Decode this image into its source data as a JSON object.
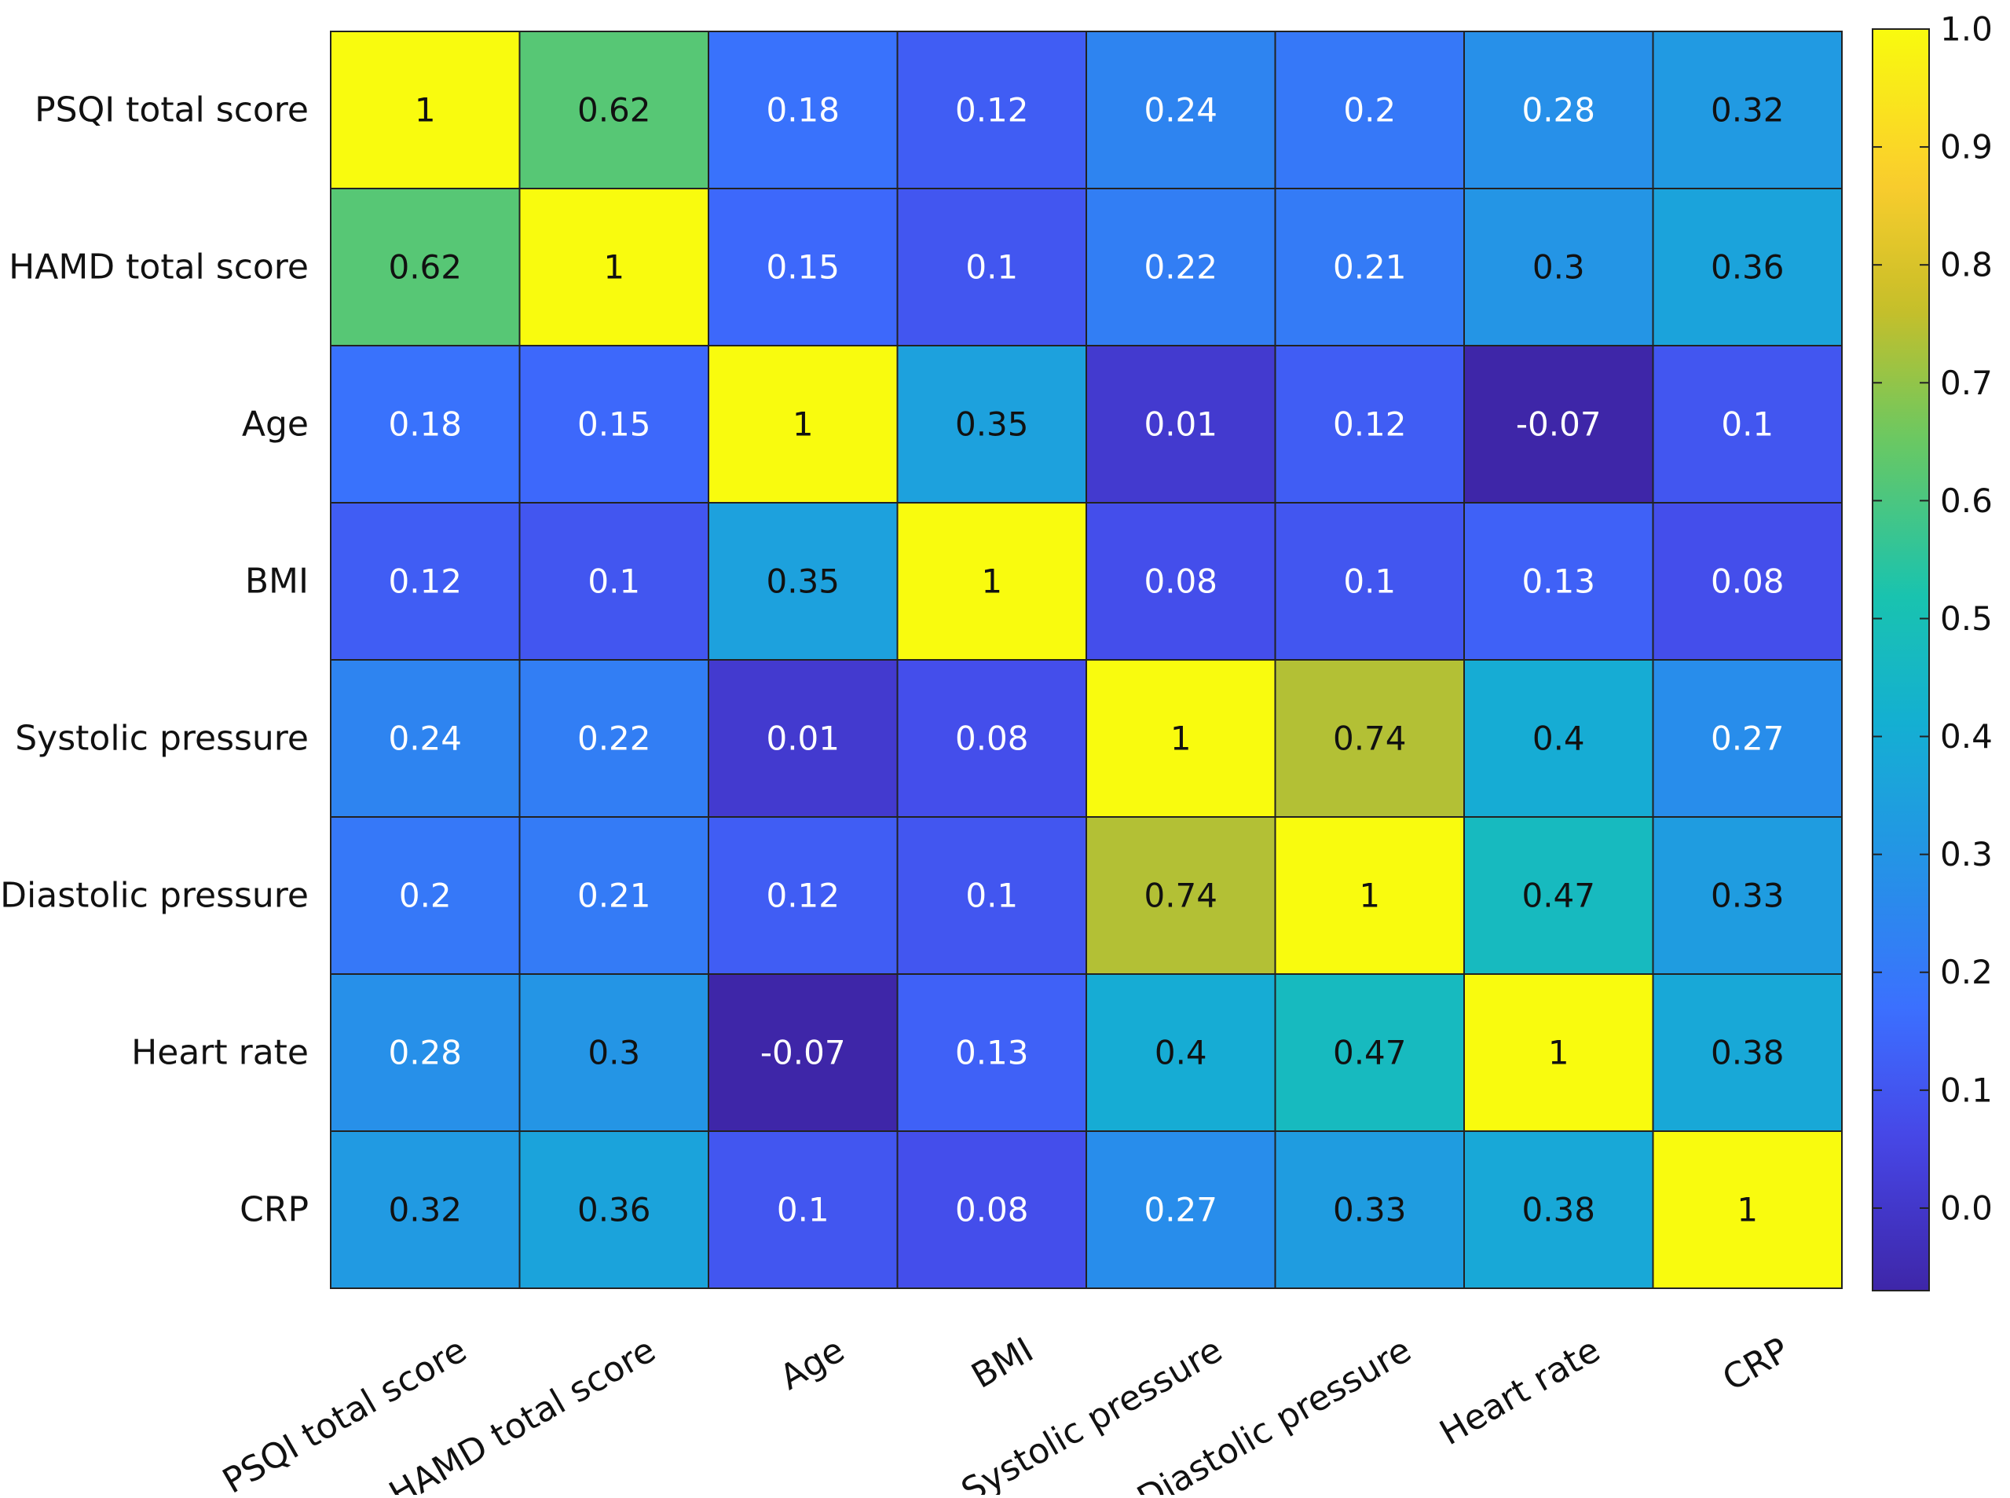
{
  "chart_data": {
    "type": "heatmap",
    "title": "",
    "xlabel": "",
    "ylabel": "",
    "categories": [
      "PSQI total score",
      "HAMD total score",
      "Age",
      "BMI",
      "Systolic pressure",
      "Diastolic pressure",
      "Heart rate",
      "CRP"
    ],
    "rows": [
      "PSQI total score",
      "HAMD total score",
      "Age",
      "BMI",
      "Systolic pressure",
      "Diastolic pressure",
      "Heart rate",
      "CRP"
    ],
    "values": [
      [
        1,
        0.62,
        0.18,
        0.12,
        0.24,
        0.2,
        0.28,
        0.32
      ],
      [
        0.62,
        1,
        0.15,
        0.1,
        0.22,
        0.21,
        0.3,
        0.36
      ],
      [
        0.18,
        0.15,
        1,
        0.35,
        0.01,
        0.12,
        -0.07,
        0.1
      ],
      [
        0.12,
        0.1,
        0.35,
        1,
        0.08,
        0.1,
        0.13,
        0.08
      ],
      [
        0.24,
        0.22,
        0.01,
        0.08,
        1,
        0.74,
        0.4,
        0.27
      ],
      [
        0.2,
        0.21,
        0.12,
        0.1,
        0.74,
        1,
        0.47,
        0.33
      ],
      [
        0.28,
        0.3,
        -0.07,
        0.13,
        0.4,
        0.47,
        1,
        0.38
      ],
      [
        0.32,
        0.36,
        0.1,
        0.08,
        0.27,
        0.33,
        0.38,
        1
      ]
    ],
    "colorbar": {
      "range": [
        -0.07,
        1.0
      ],
      "ticks": [
        "1.0",
        "0.9",
        "0.8",
        "0.7",
        "0.6",
        "0.5",
        "0.4",
        "0.3",
        "0.2",
        "0.1",
        "0.0"
      ],
      "tick_values": [
        1.0,
        0.9,
        0.8,
        0.7,
        0.6,
        0.5,
        0.4,
        0.3,
        0.2,
        0.1,
        0.0
      ],
      "colormap": "parula"
    },
    "grid": true,
    "legend": "right"
  }
}
